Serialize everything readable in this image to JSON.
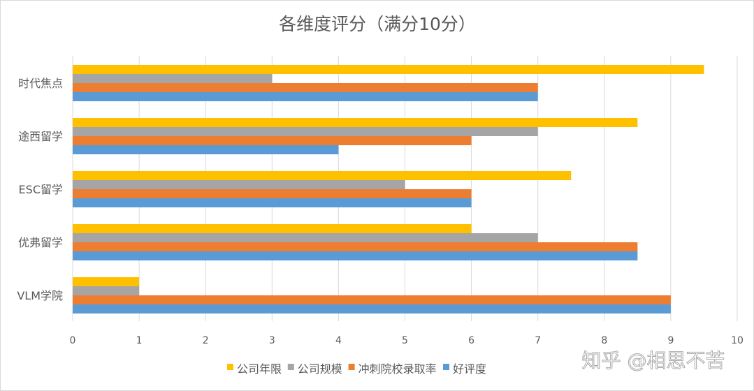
{
  "chart_data": {
    "type": "bar",
    "orientation": "horizontal",
    "title": "各维度评分（满分10分）",
    "categories": [
      "时代焦点",
      "途西留学",
      "ESC留学",
      "优弗留学",
      "VLM学院"
    ],
    "series": [
      {
        "name": "公司年限",
        "color": "#FFC000",
        "values": [
          9.5,
          8.5,
          7.5,
          6,
          1
        ]
      },
      {
        "name": "公司规模",
        "color": "#A5A5A5",
        "values": [
          3,
          7,
          5,
          7,
          1
        ]
      },
      {
        "name": "冲刺院校录取率",
        "color": "#ED7D31",
        "values": [
          7,
          6,
          6,
          8.5,
          9
        ]
      },
      {
        "name": "好评度",
        "color": "#5B9BD5",
        "values": [
          7,
          4,
          6,
          8.5,
          9
        ]
      }
    ],
    "xlim": [
      0,
      10
    ],
    "xticks": [
      "0",
      "1",
      "2",
      "3",
      "4",
      "5",
      "6",
      "7",
      "8",
      "9",
      "10"
    ],
    "grid": true,
    "legend": "bottom"
  },
  "watermark": "知乎 @相思不苦"
}
